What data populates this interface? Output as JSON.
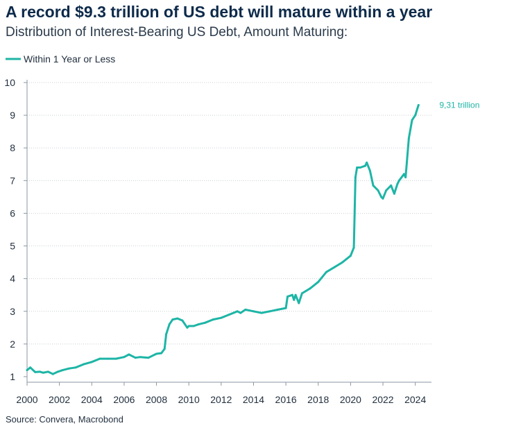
{
  "title": "A record $9.3 trillion of US debt will mature within a year",
  "subtitle": "Distribution of Interest-Bearing US Debt, Amount Maturing:",
  "source": "Source: Convera, Macrobond",
  "chart_data": {
    "type": "line",
    "title": "A record $9.3 trillion of US debt will mature within a year",
    "subtitle": "Distribution of Interest-Bearing US Debt, Amount Maturing:",
    "xlabel": "",
    "ylabel": "",
    "xlim": [
      2000,
      2025
    ],
    "ylim": [
      1,
      10
    ],
    "xticks": [
      "2000",
      "2002",
      "2004",
      "2006",
      "2008",
      "2010",
      "2012",
      "2014",
      "2016",
      "2018",
      "2020",
      "2022",
      "2024"
    ],
    "yticks": [
      "1",
      "2",
      "3",
      "4",
      "5",
      "6",
      "7",
      "8",
      "9",
      "10"
    ],
    "grid": "horizontal-dotted",
    "legend": "top-left",
    "color": "#1db5a6",
    "annotation": "9,31 trillion",
    "series": [
      {
        "name": "Within 1 Year or Less",
        "x": [
          2000.0,
          2000.2,
          2000.5,
          2000.8,
          2001.0,
          2001.3,
          2001.6,
          2001.9,
          2002.2,
          2002.6,
          2003.0,
          2003.5,
          2004.0,
          2004.5,
          2005.0,
          2005.5,
          2006.0,
          2006.3,
          2006.7,
          2007.0,
          2007.5,
          2008.0,
          2008.3,
          2008.5,
          2008.6,
          2008.8,
          2009.0,
          2009.3,
          2009.6,
          2009.9,
          2010.0,
          2010.3,
          2010.6,
          2011.0,
          2011.5,
          2012.0,
          2012.5,
          2013.0,
          2013.2,
          2013.5,
          2014.0,
          2014.5,
          2015.0,
          2015.5,
          2016.0,
          2016.1,
          2016.4,
          2016.5,
          2016.6,
          2016.8,
          2017.0,
          2017.5,
          2018.0,
          2018.5,
          2019.0,
          2019.5,
          2020.0,
          2020.2,
          2020.3,
          2020.4,
          2020.6,
          2020.9,
          2021.0,
          2021.2,
          2021.4,
          2021.7,
          2021.9,
          2022.0,
          2022.2,
          2022.5,
          2022.7,
          2022.9,
          2023.0,
          2023.3,
          2023.4,
          2023.6,
          2023.8,
          2024.0,
          2024.2
        ],
        "values": [
          1.2,
          1.28,
          1.14,
          1.15,
          1.12,
          1.15,
          1.08,
          1.15,
          1.2,
          1.25,
          1.28,
          1.38,
          1.45,
          1.55,
          1.55,
          1.55,
          1.6,
          1.68,
          1.58,
          1.6,
          1.58,
          1.7,
          1.72,
          1.85,
          2.3,
          2.6,
          2.75,
          2.78,
          2.72,
          2.5,
          2.55,
          2.55,
          2.6,
          2.65,
          2.75,
          2.8,
          2.9,
          3.0,
          2.95,
          3.05,
          3.0,
          2.95,
          3.0,
          3.05,
          3.1,
          3.45,
          3.5,
          3.35,
          3.5,
          3.25,
          3.55,
          3.7,
          3.9,
          4.2,
          4.35,
          4.5,
          4.7,
          4.95,
          7.1,
          7.4,
          7.4,
          7.45,
          7.55,
          7.3,
          6.85,
          6.7,
          6.5,
          6.45,
          6.7,
          6.85,
          6.6,
          6.9,
          7.0,
          7.2,
          7.1,
          8.3,
          8.85,
          9.0,
          9.31
        ]
      }
    ]
  }
}
